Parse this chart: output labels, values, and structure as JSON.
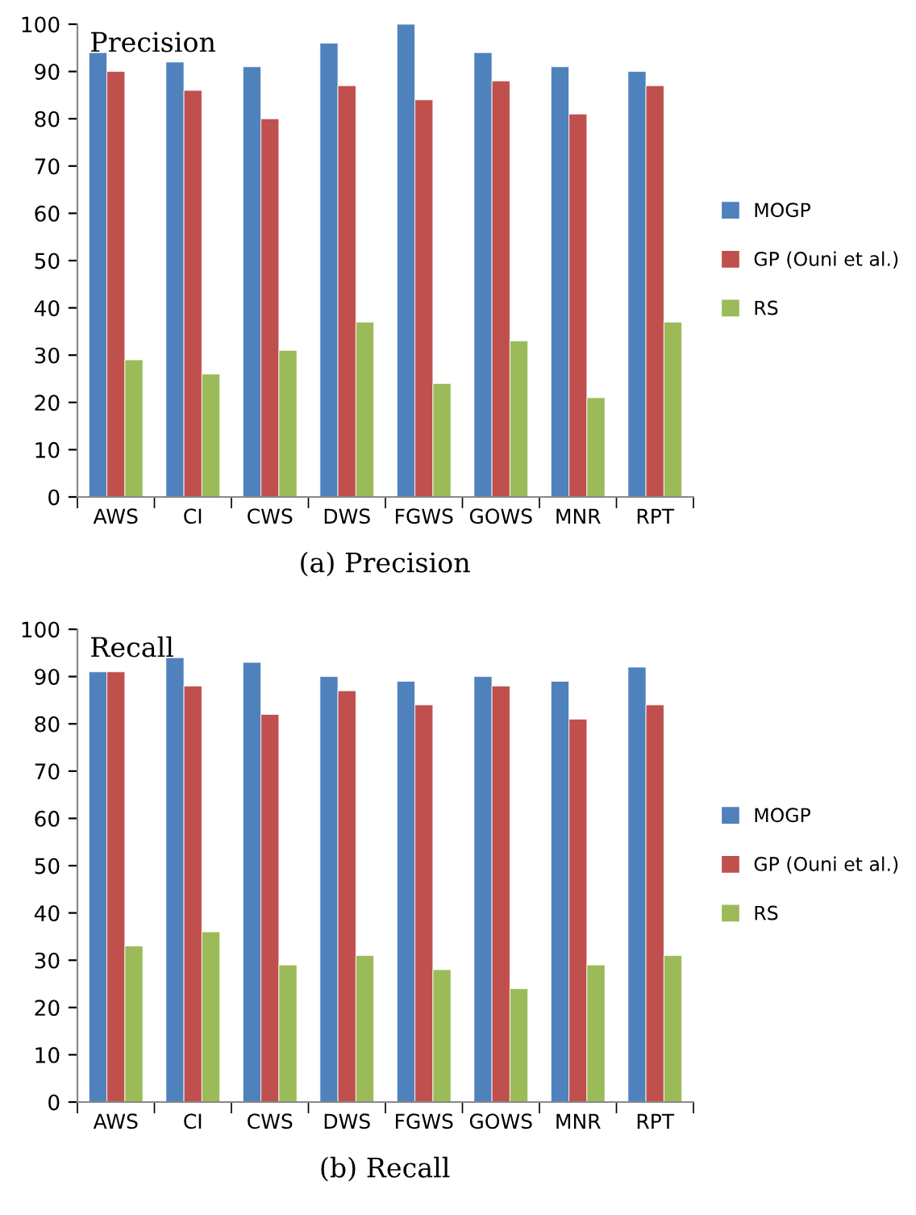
{
  "chart_data": [
    {
      "type": "bar",
      "title": "Precision",
      "categories": [
        "AWS",
        "CI",
        "CWS",
        "DWS",
        "FGWS",
        "GOWS",
        "MNR",
        "RPT"
      ],
      "series": [
        {
          "name": "MOGP",
          "color": "#4f81bd",
          "values": [
            94,
            92,
            91,
            96,
            100,
            94,
            91,
            90
          ]
        },
        {
          "name": "GP (Ouni et al.)",
          "color": "#c0504d",
          "values": [
            90,
            86,
            80,
            87,
            84,
            88,
            81,
            87
          ]
        },
        {
          "name": "RS",
          "color": "#9bbb59",
          "values": [
            29,
            26,
            31,
            37,
            24,
            33,
            21,
            37
          ]
        }
      ],
      "ylim": [
        0,
        100
      ],
      "yticks": [
        0,
        10,
        20,
        30,
        40,
        50,
        60,
        70,
        80,
        90,
        100
      ],
      "grid": false,
      "legend": "right",
      "annotations": [
        "(a) Precision"
      ]
    },
    {
      "type": "bar",
      "title": "Recall",
      "categories": [
        "AWS",
        "CI",
        "CWS",
        "DWS",
        "FGWS",
        "GOWS",
        "MNR",
        "RPT"
      ],
      "series": [
        {
          "name": "MOGP",
          "color": "#4f81bd",
          "values": [
            91,
            94,
            93,
            90,
            89,
            90,
            89,
            92
          ]
        },
        {
          "name": "GP (Ouni et al.)",
          "color": "#c0504d",
          "values": [
            91,
            88,
            82,
            87,
            84,
            88,
            81,
            84
          ]
        },
        {
          "name": "RS",
          "color": "#9bbb59",
          "values": [
            33,
            36,
            29,
            31,
            28,
            24,
            29,
            31
          ]
        }
      ],
      "ylim": [
        0,
        100
      ],
      "yticks": [
        0,
        10,
        20,
        30,
        40,
        50,
        60,
        70,
        80,
        90,
        100
      ],
      "grid": false,
      "legend": "right",
      "annotations": [
        "(b) Recall"
      ]
    }
  ]
}
